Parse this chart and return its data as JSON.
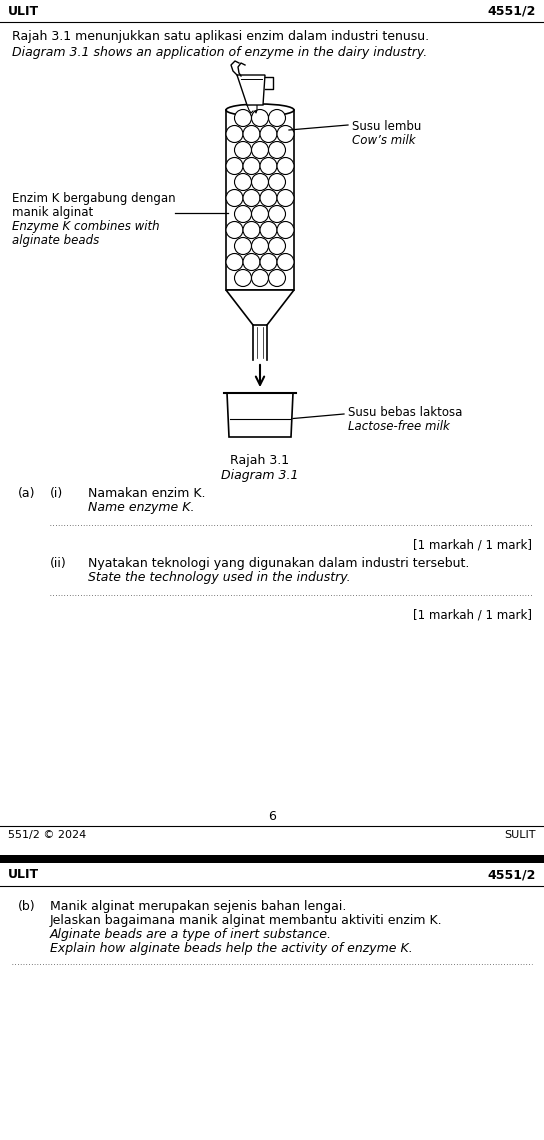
{
  "page1_header_left": "ULIT",
  "page1_header_right": "4551/2",
  "intro_line1": "Rajah 3.1 menunjukkan satu aplikasi enzim dalam industri tenusu.",
  "intro_line2": "Diagram 3.1 shows an application of enzyme in the dairy industry.",
  "label_cow_milk_line1": "Susu lembu",
  "label_cow_milk_line2": "Cow’s milk",
  "label_enzyme_line1": "Enzim K bergabung dengan",
  "label_enzyme_line2": "manik alginat",
  "label_enzyme_line3": "Enzyme K combines with",
  "label_enzyme_line4": "alginate beads",
  "label_lactose_line1": "Susu bebas laktosa",
  "label_lactose_line2": "Lactose-free milk",
  "caption_line1": "Rajah 3.1",
  "caption_line2": "Diagram 3.1",
  "qa_label": "(a)",
  "qi_label": "(i)",
  "qi_text1": "Namakan enzim K.",
  "qi_text2": "Name enzyme K.",
  "qii_label": "(ii)",
  "qii_text1": "Nyatakan teknologi yang digunakan dalam industri tersebut.",
  "qii_text2": "State the technology used in the industry.",
  "mark1": "[1 markah / 1 mark]",
  "mark2": "[1 markah / 1 mark]",
  "page_num": "6",
  "footer_left": "551/2 © 2024",
  "footer_right": "SULIT",
  "page2_header_left": "ULIT",
  "page2_header_right": "4551/2",
  "qb_label": "(b)",
  "qb_text1": "Manik alginat merupakan sejenis bahan lengai.",
  "qb_text2": "Jelaskan bagaimana manik alginat membantu aktiviti enzim K.",
  "qb_text3": "Alginate beads are a type of inert substance.",
  "qb_text4": "Explain how alginate beads help the activity of enzyme K.",
  "bg_color": "#ffffff",
  "text_color": "#000000"
}
